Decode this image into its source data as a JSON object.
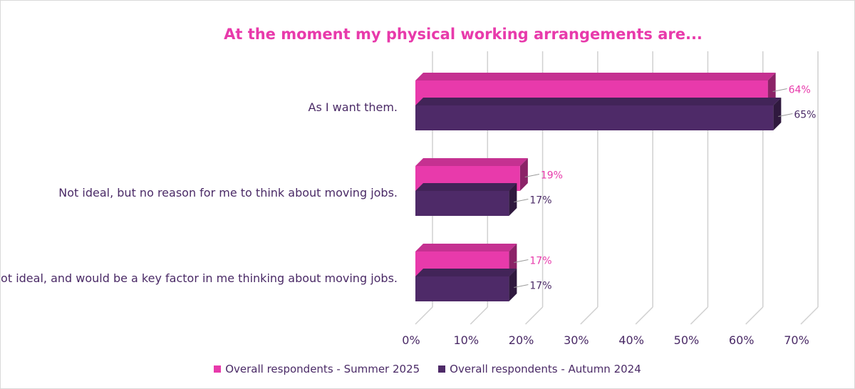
{
  "chart_data": {
    "type": "bar",
    "orientation": "horizontal",
    "style": "3d-clustered",
    "title": "At the moment my physical working arrangements are...",
    "categories": [
      "As I want them.",
      "Not ideal, but no reason for me to think about moving jobs.",
      "Not ideal, and would be a key factor in me thinking about moving jobs."
    ],
    "series": [
      {
        "name": "Overall respondents - Summer 2025",
        "color": "#e83aab",
        "values": [
          64,
          19,
          17
        ],
        "labels": [
          "64%",
          "19%",
          "17%"
        ]
      },
      {
        "name": "Overall respondents - Autumn 2024",
        "color": "#4e2a68",
        "values": [
          65,
          17,
          17
        ],
        "labels": [
          "65%",
          "17%",
          "17%"
        ]
      }
    ],
    "xlim": [
      0,
      70
    ],
    "xticks": [
      "0%",
      "10%",
      "20%",
      "30%",
      "40%",
      "50%",
      "60%",
      "70%"
    ],
    "grid": true,
    "legend": "bottom"
  }
}
